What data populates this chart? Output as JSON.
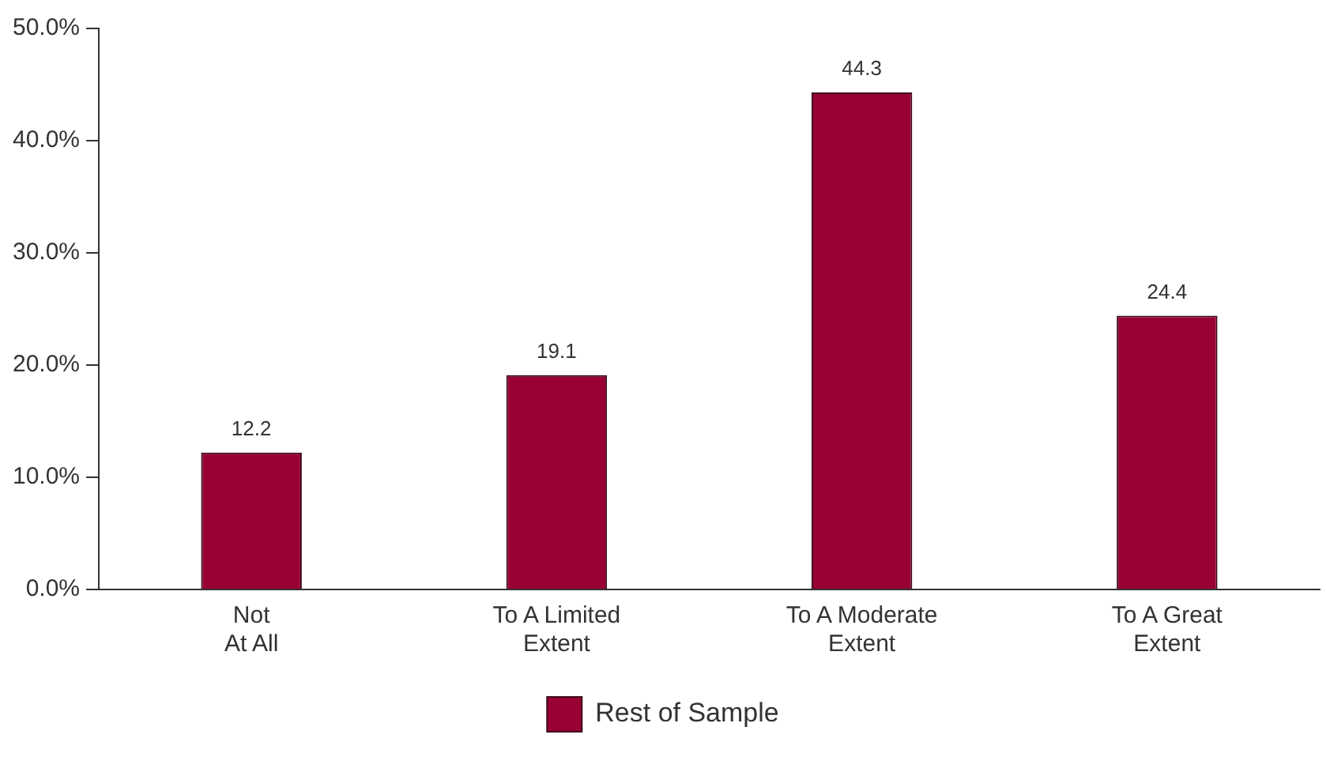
{
  "chart_data": {
    "type": "bar",
    "categories": [
      "Not\nAt All",
      "To A Limited\nExtent",
      "To A Moderate\nExtent",
      "To A Great\nExtent"
    ],
    "series": [
      {
        "name": "Rest of Sample",
        "color": "#990033",
        "values": [
          12.2,
          19.1,
          44.3,
          24.4
        ]
      }
    ],
    "ylim": [
      0,
      50
    ],
    "yticks": [
      {
        "value": 0,
        "label": "0.0%"
      },
      {
        "value": 10,
        "label": "10.0%"
      },
      {
        "value": 20,
        "label": "20.0%"
      },
      {
        "value": 30,
        "label": "30.0%"
      },
      {
        "value": 40,
        "label": "40.0%"
      },
      {
        "value": 50,
        "label": "50.0%"
      }
    ],
    "data_labels": true,
    "grid": false,
    "legend": "bottom"
  }
}
